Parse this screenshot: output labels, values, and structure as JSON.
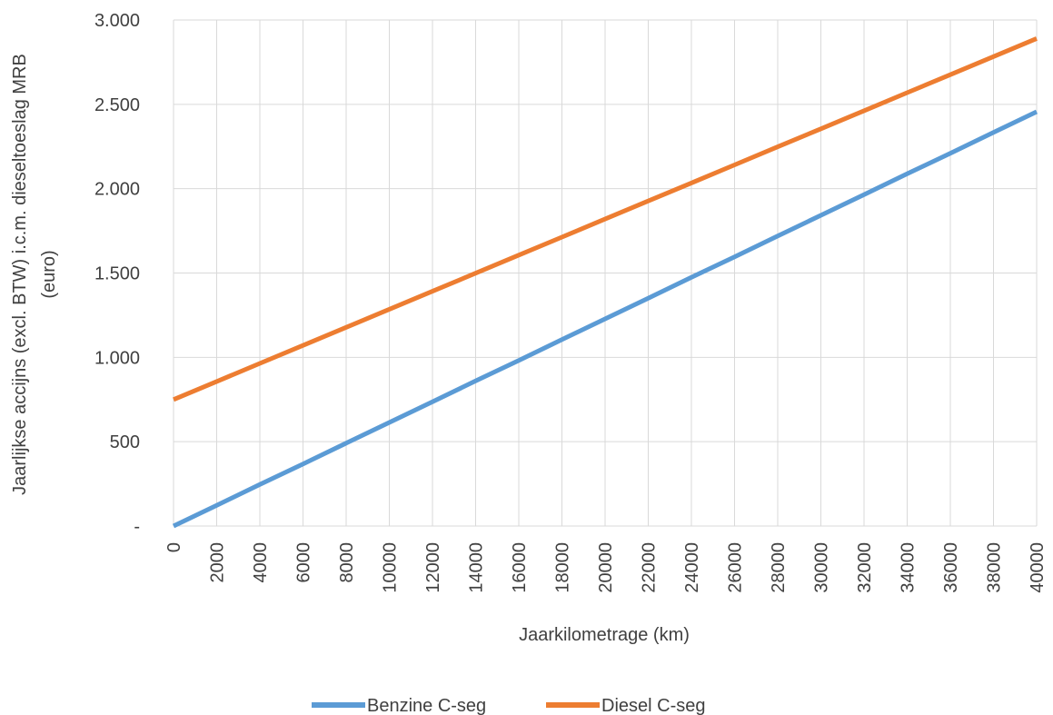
{
  "chart_data": {
    "type": "line",
    "title": "",
    "xlabel": "Jaarkilometrage (km)",
    "ylabel_lines": [
      "Jaarlijkse accijns (excl. BTW) i.c.m. dieseltoeslag MRB",
      "(euro)"
    ],
    "x": [
      0,
      2000,
      4000,
      6000,
      8000,
      10000,
      12000,
      14000,
      16000,
      18000,
      20000,
      22000,
      24000,
      26000,
      28000,
      30000,
      32000,
      34000,
      36000,
      38000,
      40000
    ],
    "xlim": [
      0,
      40000
    ],
    "ylim": [
      0,
      3000
    ],
    "yticks": [
      0,
      500,
      1000,
      1500,
      2000,
      2500,
      3000
    ],
    "ytick_labels": [
      "-",
      "500",
      "1.000",
      "1.500",
      "2.000",
      "2.500",
      "3.000"
    ],
    "grid": true,
    "legend_position": "bottom",
    "series": [
      {
        "name": "Benzine C-seg",
        "color": "#5b9bd5",
        "values": [
          0,
          123,
          246,
          368,
          491,
          614,
          737,
          860,
          982,
          1105,
          1228,
          1351,
          1474,
          1596,
          1719,
          1842,
          1965,
          2088,
          2210,
          2333,
          2456
        ]
      },
      {
        "name": "Diesel C-seg",
        "color": "#ed7d31",
        "values": [
          750,
          857,
          964,
          1071,
          1178,
          1285,
          1392,
          1499,
          1606,
          1713,
          1820,
          1927,
          2034,
          2141,
          2248,
          2355,
          2462,
          2569,
          2676,
          2783,
          2890
        ]
      }
    ]
  }
}
